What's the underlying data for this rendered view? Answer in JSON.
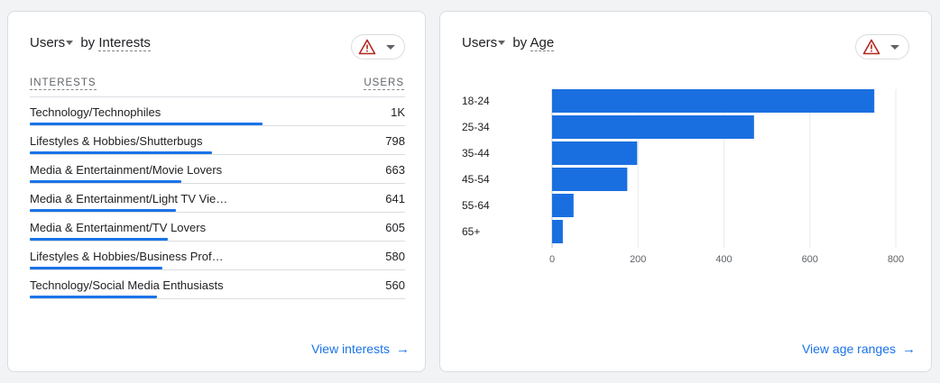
{
  "interests_card": {
    "metric": "Users",
    "by": "by",
    "dimension": "Interests",
    "col_dimension": "INTERESTS",
    "col_metric": "USERS",
    "rows": [
      {
        "label": "Technology/Technophiles",
        "value": "1K",
        "fraction": 0.62
      },
      {
        "label": "Lifestyles & Hobbies/Shutterbugs",
        "value": "798",
        "fraction": 0.485
      },
      {
        "label": "Media & Entertainment/Movie Lovers",
        "value": "663",
        "fraction": 0.403
      },
      {
        "label": "Media & Entertainment/Light TV Vie…",
        "value": "641",
        "fraction": 0.39
      },
      {
        "label": "Media & Entertainment/TV Lovers",
        "value": "605",
        "fraction": 0.368
      },
      {
        "label": "Lifestyles & Hobbies/Business Prof…",
        "value": "580",
        "fraction": 0.353
      },
      {
        "label": "Technology/Social Media Enthusiasts",
        "value": "560",
        "fraction": 0.34
      }
    ],
    "link": "View interests",
    "link_icon": "arrow-right-icon"
  },
  "age_card": {
    "metric": "Users",
    "by": "by",
    "dimension": "Age",
    "link": "View age ranges",
    "link_icon": "arrow-right-icon"
  },
  "colors": {
    "accent": "#1a73e8",
    "bar": "#1a6fe0",
    "warning": "#b3261e"
  },
  "chart_data": {
    "type": "bar",
    "orientation": "horizontal",
    "categories": [
      "18-24",
      "25-34",
      "35-44",
      "45-54",
      "55-64",
      "65+"
    ],
    "values": [
      750,
      470,
      198,
      175,
      50,
      25
    ],
    "xlim": [
      0,
      800
    ],
    "xticks": [
      0,
      200,
      400,
      600,
      800
    ],
    "grid": true,
    "legend": "none"
  }
}
